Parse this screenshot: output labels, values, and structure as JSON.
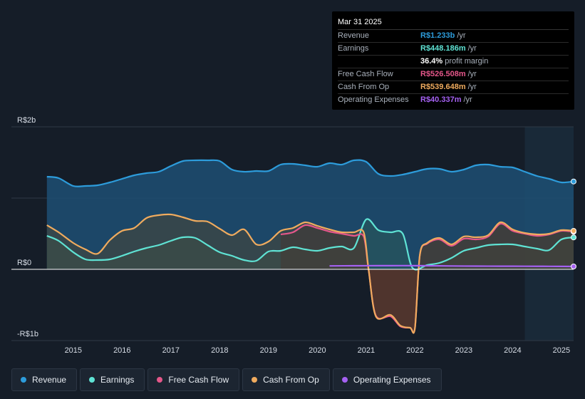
{
  "tooltip": {
    "date": "Mar 31 2025",
    "rows": [
      {
        "label": "Revenue",
        "value": "R$1.233b",
        "suffix": "/yr",
        "color": "#2d9cdb"
      },
      {
        "label": "Earnings",
        "value": "R$448.186m",
        "suffix": "/yr",
        "color": "#5fe3d4"
      },
      {
        "label": "",
        "value": "36.4%",
        "suffix": "profit margin",
        "color": "#ffffff"
      },
      {
        "label": "Free Cash Flow",
        "value": "R$526.508m",
        "suffix": "/yr",
        "color": "#e5578a"
      },
      {
        "label": "Cash From Op",
        "value": "R$539.648m",
        "suffix": "/yr",
        "color": "#f0ab5e"
      },
      {
        "label": "Operating Expenses",
        "value": "R$40.337m",
        "suffix": "/yr",
        "color": "#a561f2"
      }
    ]
  },
  "legend": [
    {
      "label": "Revenue",
      "color": "#2d9cdb"
    },
    {
      "label": "Earnings",
      "color": "#5fe3d4"
    },
    {
      "label": "Free Cash Flow",
      "color": "#e5578a"
    },
    {
      "label": "Cash From Op",
      "color": "#f0ab5e"
    },
    {
      "label": "Operating Expenses",
      "color": "#a561f2"
    }
  ],
  "chart_data": {
    "type": "area",
    "title": "",
    "xlabel": "",
    "ylabel": "",
    "units": "R$ billions",
    "xlim": [
      2014.2,
      2025.25
    ],
    "ylim": [
      -1,
      2
    ],
    "y_tick_labels": [
      {
        "value": 2,
        "label": "R$2b"
      },
      {
        "value": 0,
        "label": "R$0"
      },
      {
        "value": -1,
        "label": "-R$1b"
      }
    ],
    "x_tick_labels": [
      "2015",
      "2016",
      "2017",
      "2018",
      "2019",
      "2020",
      "2021",
      "2022",
      "2023",
      "2024",
      "2025"
    ],
    "x_tick_values": [
      2015,
      2016,
      2017,
      2018,
      2019,
      2020,
      2021,
      2022,
      2023,
      2024,
      2025
    ],
    "forecast_start": 2024.25,
    "series": [
      {
        "name": "Revenue",
        "color": "#2d9cdb",
        "fill": "#1d4f73",
        "x": [
          2014.46,
          2014.7,
          2015.0,
          2015.25,
          2015.5,
          2015.75,
          2016.0,
          2016.25,
          2016.5,
          2016.75,
          2017.0,
          2017.25,
          2017.5,
          2017.75,
          2018.0,
          2018.25,
          2018.5,
          2018.75,
          2019.0,
          2019.25,
          2019.5,
          2019.75,
          2020.0,
          2020.25,
          2020.5,
          2020.75,
          2021.0,
          2021.25,
          2021.5,
          2021.75,
          2022.0,
          2022.25,
          2022.5,
          2022.75,
          2023.0,
          2023.25,
          2023.5,
          2023.75,
          2024.0,
          2024.25,
          2024.5,
          2024.75,
          2025.0,
          2025.25
        ],
        "values": [
          1.3,
          1.28,
          1.17,
          1.17,
          1.18,
          1.22,
          1.27,
          1.32,
          1.35,
          1.37,
          1.45,
          1.52,
          1.53,
          1.53,
          1.52,
          1.4,
          1.37,
          1.38,
          1.38,
          1.47,
          1.48,
          1.46,
          1.44,
          1.49,
          1.47,
          1.53,
          1.51,
          1.34,
          1.31,
          1.33,
          1.37,
          1.41,
          1.41,
          1.37,
          1.4,
          1.46,
          1.47,
          1.44,
          1.43,
          1.37,
          1.31,
          1.27,
          1.22,
          1.233
        ]
      },
      {
        "name": "Earnings",
        "color": "#5fe3d4",
        "fill": "#2b5a57",
        "x": [
          2014.46,
          2014.7,
          2015.0,
          2015.25,
          2015.5,
          2015.75,
          2016.0,
          2016.25,
          2016.5,
          2016.75,
          2017.0,
          2017.25,
          2017.5,
          2017.75,
          2018.0,
          2018.25,
          2018.5,
          2018.75,
          2019.0,
          2019.25,
          2019.5,
          2019.75,
          2020.0,
          2020.25,
          2020.5,
          2020.75,
          2021.0,
          2021.25,
          2021.5,
          2021.75,
          2021.95,
          2022.25,
          2022.5,
          2022.75,
          2023.0,
          2023.25,
          2023.5,
          2023.75,
          2024.0,
          2024.25,
          2024.5,
          2024.75,
          2025.0,
          2025.25
        ],
        "values": [
          0.47,
          0.4,
          0.24,
          0.14,
          0.13,
          0.14,
          0.19,
          0.25,
          0.3,
          0.34,
          0.4,
          0.45,
          0.44,
          0.34,
          0.24,
          0.19,
          0.13,
          0.12,
          0.25,
          0.26,
          0.31,
          0.28,
          0.26,
          0.3,
          0.32,
          0.3,
          0.7,
          0.55,
          0.52,
          0.5,
          0.02,
          0.06,
          0.09,
          0.16,
          0.26,
          0.3,
          0.34,
          0.35,
          0.35,
          0.32,
          0.29,
          0.27,
          0.42,
          0.448
        ]
      },
      {
        "name": "Free Cash Flow",
        "color": "#e5578a",
        "fill": "#3d2a30",
        "fill_negative": "#5a1f24",
        "x": [
          2019.25,
          2019.5,
          2019.75,
          2020.0,
          2020.25,
          2020.5,
          2020.75,
          2020.95,
          2021.05,
          2021.2,
          2021.5,
          2021.7,
          2021.9,
          2022.0,
          2022.1,
          2022.25,
          2022.5,
          2022.75,
          2023.0,
          2023.25,
          2023.5,
          2023.75,
          2024.0,
          2024.25,
          2024.5,
          2024.75,
          2025.0,
          2025.25
        ],
        "values": [
          0.49,
          0.52,
          0.62,
          0.58,
          0.53,
          0.5,
          0.47,
          0.46,
          -0.01,
          -0.65,
          -0.66,
          -0.8,
          -0.82,
          -0.82,
          0.2,
          0.36,
          0.42,
          0.33,
          0.43,
          0.42,
          0.46,
          0.64,
          0.54,
          0.5,
          0.47,
          0.49,
          0.54,
          0.527
        ]
      },
      {
        "name": "Cash From Op",
        "color": "#f0ab5e",
        "fill": "#4b4634",
        "x": [
          2014.46,
          2014.7,
          2015.0,
          2015.25,
          2015.5,
          2015.75,
          2016.0,
          2016.25,
          2016.5,
          2016.75,
          2017.0,
          2017.25,
          2017.5,
          2017.75,
          2018.0,
          2018.25,
          2018.5,
          2018.75,
          2019.0,
          2019.25,
          2019.5,
          2019.75,
          2020.0,
          2020.25,
          2020.5,
          2020.75,
          2020.95,
          2021.05,
          2021.2,
          2021.5,
          2021.7,
          2021.9,
          2022.0,
          2022.1,
          2022.25,
          2022.5,
          2022.75,
          2023.0,
          2023.25,
          2023.5,
          2023.75,
          2024.0,
          2024.25,
          2024.5,
          2024.75,
          2025.0,
          2025.25
        ],
        "values": [
          0.62,
          0.52,
          0.37,
          0.28,
          0.22,
          0.41,
          0.54,
          0.58,
          0.72,
          0.76,
          0.77,
          0.73,
          0.68,
          0.67,
          0.57,
          0.48,
          0.56,
          0.35,
          0.39,
          0.54,
          0.58,
          0.66,
          0.61,
          0.56,
          0.52,
          0.52,
          0.52,
          0.0,
          -0.66,
          -0.64,
          -0.79,
          -0.82,
          -0.82,
          0.2,
          0.37,
          0.44,
          0.35,
          0.46,
          0.45,
          0.48,
          0.66,
          0.56,
          0.51,
          0.49,
          0.5,
          0.55,
          0.54
        ]
      },
      {
        "name": "Operating Expenses",
        "color": "#a561f2",
        "fill": "none",
        "x": [
          2020.25,
          2020.75,
          2021.25,
          2021.75,
          2022.25,
          2022.75,
          2023.25,
          2023.75,
          2024.25,
          2024.75,
          2025.25
        ],
        "values": [
          0.048,
          0.05,
          0.051,
          0.052,
          0.05,
          0.047,
          0.045,
          0.044,
          0.043,
          0.042,
          0.04
        ]
      }
    ]
  }
}
